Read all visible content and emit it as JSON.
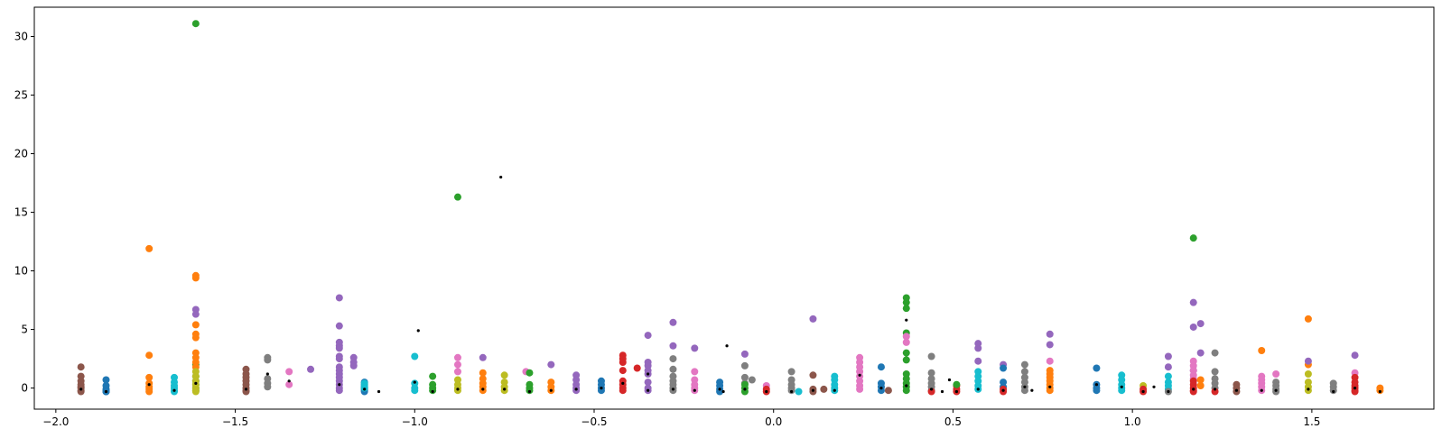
{
  "chart_data": {
    "type": "scatter",
    "title": "",
    "xlabel": "",
    "ylabel": "",
    "xlim": [
      -2.06,
      1.84
    ],
    "ylim": [
      -1.8,
      32.5
    ],
    "grid": false,
    "legend": "none",
    "x_ticks": [
      -2.0,
      -1.5,
      -1.0,
      -0.5,
      0.0,
      0.5,
      1.0,
      1.5
    ],
    "x_tick_labels": [
      "−2.0",
      "−1.5",
      "−1.0",
      "−0.5",
      "0.0",
      "0.5",
      "1.0",
      "1.5"
    ],
    "y_ticks": [
      0,
      5,
      10,
      15,
      20,
      25,
      30
    ],
    "y_tick_labels": [
      "0",
      "5",
      "10",
      "15",
      "20",
      "25",
      "30"
    ],
    "colors": [
      "#1f77b4",
      "#ff7f0e",
      "#2ca02c",
      "#d62728",
      "#9467bd",
      "#8c564b",
      "#e377c2",
      "#7f7f7f",
      "#bcbd22",
      "#17becf"
    ],
    "groups": [
      {
        "x": -1.93,
        "color": "#8c564b",
        "ys": [
          1.8,
          1.0,
          0.6,
          0.3,
          0.1,
          0.0,
          -0.2,
          -0.3
        ]
      },
      {
        "x": -1.86,
        "color": "#1f77b4",
        "ys": [
          0.7,
          0.2,
          -0.1,
          -0.2,
          -0.3,
          -0.3,
          -0.3
        ]
      },
      {
        "x": -1.74,
        "color": "#ff7f0e",
        "ys": [
          11.9,
          2.8,
          0.9,
          0.4,
          0.1,
          -0.1,
          -0.3
        ]
      },
      {
        "x": -1.67,
        "color": "#17becf",
        "ys": [
          0.9,
          0.5,
          0.2,
          0.0,
          -0.2,
          -0.3
        ]
      },
      {
        "x": -1.61,
        "color": "#2ca02c",
        "ys": [
          31.1,
          2.0,
          1.0,
          0.6,
          0.3,
          0.0,
          -0.2
        ]
      },
      {
        "x": -1.61,
        "color": "#ff7f0e",
        "ys": [
          9.6,
          9.4,
          5.4,
          4.6,
          4.3,
          3.0,
          2.6,
          2.2,
          1.8
        ]
      },
      {
        "x": -1.61,
        "color": "#9467bd",
        "ys": [
          6.7,
          6.3
        ]
      },
      {
        "x": -1.61,
        "color": "#bcbd22",
        "ys": [
          1.4,
          1.0,
          0.6,
          0.3,
          0.0,
          -0.2,
          -0.3
        ]
      },
      {
        "x": -1.47,
        "color": "#8c564b",
        "ys": [
          1.6,
          1.2,
          0.9,
          0.6,
          0.3,
          0.0,
          -0.2,
          -0.3
        ]
      },
      {
        "x": -1.41,
        "color": "#7f7f7f",
        "ys": [
          2.6,
          2.4,
          0.8,
          0.4,
          0.1
        ]
      },
      {
        "x": -1.35,
        "color": "#e377c2",
        "ys": [
          1.4,
          0.3
        ]
      },
      {
        "x": -1.29,
        "color": "#9467bd",
        "ys": [
          1.6
        ]
      },
      {
        "x": -1.21,
        "color": "#9467bd",
        "ys": [
          7.7,
          5.3,
          3.9,
          3.6,
          3.4,
          2.7,
          2.5,
          1.8,
          1.5,
          1.2,
          0.9,
          0.6,
          0.3,
          0.0,
          -0.2
        ]
      },
      {
        "x": -1.17,
        "color": "#9467bd",
        "ys": [
          2.6,
          2.2,
          1.9
        ]
      },
      {
        "x": -1.14,
        "color": "#1f77b4",
        "ys": [
          0.5,
          0.3,
          0.1,
          0.0,
          -0.1,
          -0.2,
          -0.3
        ]
      },
      {
        "x": -1.14,
        "color": "#17becf",
        "ys": [
          0.4,
          0.2,
          0.0
        ]
      },
      {
        "x": -1.0,
        "color": "#17becf",
        "ys": [
          2.7,
          0.4,
          0.0,
          -0.2
        ]
      },
      {
        "x": -0.95,
        "color": "#2ca02c",
        "ys": [
          1.0,
          0.3,
          0.0,
          -0.2
        ]
      },
      {
        "x": -0.88,
        "color": "#2ca02c",
        "ys": [
          16.3
        ]
      },
      {
        "x": -0.88,
        "color": "#e377c2",
        "ys": [
          2.6,
          2.0,
          1.4
        ]
      },
      {
        "x": -0.88,
        "color": "#bcbd22",
        "ys": [
          0.7,
          0.3,
          0.0,
          -0.2
        ]
      },
      {
        "x": -0.81,
        "color": "#9467bd",
        "ys": [
          2.6
        ]
      },
      {
        "x": -0.81,
        "color": "#ff7f0e",
        "ys": [
          1.3,
          0.8,
          0.4,
          0.1,
          -0.2
        ]
      },
      {
        "x": -0.75,
        "color": "#bcbd22",
        "ys": [
          1.1,
          0.5,
          0.1,
          -0.2
        ]
      },
      {
        "x": -0.69,
        "color": "#e377c2",
        "ys": [
          1.4
        ]
      },
      {
        "x": -0.68,
        "color": "#2ca02c",
        "ys": [
          1.3,
          0.3,
          0.0,
          -0.2
        ]
      },
      {
        "x": -0.62,
        "color": "#9467bd",
        "ys": [
          2.0
        ]
      },
      {
        "x": -0.62,
        "color": "#ff7f0e",
        "ys": [
          0.5,
          0.1,
          -0.2
        ]
      },
      {
        "x": -0.55,
        "color": "#9467bd",
        "ys": [
          1.1,
          0.7,
          0.3,
          0.0,
          -0.2
        ]
      },
      {
        "x": -0.48,
        "color": "#1f77b4",
        "ys": [
          0.6,
          0.3,
          0.0,
          -0.2
        ]
      },
      {
        "x": -0.42,
        "color": "#d62728",
        "ys": [
          2.8,
          2.5,
          2.2,
          1.5,
          0.6,
          0.3,
          0.0,
          -0.2
        ]
      },
      {
        "x": -0.38,
        "color": "#d62728",
        "ys": [
          1.7
        ]
      },
      {
        "x": -0.35,
        "color": "#9467bd",
        "ys": [
          4.5,
          2.2,
          1.9,
          1.5,
          1.2,
          0.5,
          0.0,
          -0.2
        ]
      },
      {
        "x": -0.28,
        "color": "#9467bd",
        "ys": [
          5.6,
          3.6
        ]
      },
      {
        "x": -0.28,
        "color": "#7f7f7f",
        "ys": [
          2.5,
          1.6,
          1.0,
          0.6,
          0.3,
          0.0,
          -0.2
        ]
      },
      {
        "x": -0.22,
        "color": "#9467bd",
        "ys": [
          3.4
        ]
      },
      {
        "x": -0.22,
        "color": "#e377c2",
        "ys": [
          1.4,
          0.7,
          0.3,
          0.0,
          -0.2
        ]
      },
      {
        "x": -0.15,
        "color": "#1f77b4",
        "ys": [
          0.5,
          0.2,
          -0.1,
          -0.3
        ]
      },
      {
        "x": -0.08,
        "color": "#9467bd",
        "ys": [
          2.9
        ]
      },
      {
        "x": -0.08,
        "color": "#7f7f7f",
        "ys": [
          1.9,
          0.9,
          0.4
        ]
      },
      {
        "x": -0.08,
        "color": "#2ca02c",
        "ys": [
          0.3,
          0.0,
          -0.3
        ]
      },
      {
        "x": -0.06,
        "color": "#7f7f7f",
        "ys": [
          0.7
        ]
      },
      {
        "x": -0.02,
        "color": "#e377c2",
        "ys": [
          0.2
        ]
      },
      {
        "x": -0.02,
        "color": "#d62728",
        "ys": [
          -0.1,
          -0.3
        ]
      },
      {
        "x": 0.05,
        "color": "#7f7f7f",
        "ys": [
          1.4,
          0.7,
          0.3,
          0.0,
          -0.2
        ]
      },
      {
        "x": 0.07,
        "color": "#17becf",
        "ys": [
          -0.3
        ]
      },
      {
        "x": 0.11,
        "color": "#9467bd",
        "ys": [
          5.9
        ]
      },
      {
        "x": 0.11,
        "color": "#8c564b",
        "ys": [
          1.1,
          -0.1,
          -0.3
        ]
      },
      {
        "x": 0.14,
        "color": "#8c564b",
        "ys": [
          -0.1
        ]
      },
      {
        "x": 0.17,
        "color": "#17becf",
        "ys": [
          1.0,
          0.7,
          0.3,
          0.0,
          -0.2
        ]
      },
      {
        "x": 0.24,
        "color": "#e377c2",
        "ys": [
          2.6,
          2.2,
          1.8,
          1.4,
          1.0,
          0.6,
          0.2,
          -0.1
        ]
      },
      {
        "x": 0.3,
        "color": "#1f77b4",
        "ys": [
          1.8,
          0.4,
          0.1,
          -0.2
        ]
      },
      {
        "x": 0.32,
        "color": "#8c564b",
        "ys": [
          -0.2
        ]
      },
      {
        "x": 0.37,
        "color": "#2ca02c",
        "ys": [
          7.7,
          7.3,
          6.8,
          4.7,
          3.0,
          2.4,
          1.2,
          0.8,
          0.4,
          0.1,
          -0.2
        ]
      },
      {
        "x": 0.37,
        "color": "#e377c2",
        "ys": [
          4.4,
          3.9
        ]
      },
      {
        "x": 0.44,
        "color": "#7f7f7f",
        "ys": [
          2.7,
          1.3,
          0.8,
          0.4,
          0.1,
          -0.2
        ]
      },
      {
        "x": 0.44,
        "color": "#d62728",
        "ys": [
          -0.3
        ]
      },
      {
        "x": 0.51,
        "color": "#d62728",
        "ys": [
          0.2,
          -0.1,
          -0.3
        ]
      },
      {
        "x": 0.51,
        "color": "#2ca02c",
        "ys": [
          0.3
        ]
      },
      {
        "x": 0.57,
        "color": "#9467bd",
        "ys": [
          3.8,
          3.4,
          2.3
        ]
      },
      {
        "x": 0.57,
        "color": "#17becf",
        "ys": [
          1.4,
          1.0,
          0.6,
          0.2,
          -0.1
        ]
      },
      {
        "x": 0.64,
        "color": "#9467bd",
        "ys": [
          2.0
        ]
      },
      {
        "x": 0.64,
        "color": "#1f77b4",
        "ys": [
          1.7,
          0.5,
          0.1
        ]
      },
      {
        "x": 0.64,
        "color": "#d62728",
        "ys": [
          -0.1,
          -0.3
        ]
      },
      {
        "x": 0.7,
        "color": "#7f7f7f",
        "ys": [
          2.0,
          1.4,
          0.9,
          0.5,
          0.1,
          -0.2
        ]
      },
      {
        "x": 0.77,
        "color": "#9467bd",
        "ys": [
          4.6,
          3.7
        ]
      },
      {
        "x": 0.77,
        "color": "#e377c2",
        "ys": [
          2.3
        ]
      },
      {
        "x": 0.77,
        "color": "#ff7f0e",
        "ys": [
          1.5,
          1.2,
          0.9,
          0.6,
          0.3,
          0.0,
          -0.2
        ]
      },
      {
        "x": 0.9,
        "color": "#1f77b4",
        "ys": [
          1.7,
          0.3,
          0.0,
          -0.2
        ]
      },
      {
        "x": 0.97,
        "color": "#17becf",
        "ys": [
          1.1,
          0.7,
          0.3,
          0.0,
          -0.2
        ]
      },
      {
        "x": 1.03,
        "color": "#bcbd22",
        "ys": [
          0.2
        ]
      },
      {
        "x": 1.03,
        "color": "#d62728",
        "ys": [
          -0.1,
          -0.3
        ]
      },
      {
        "x": 1.1,
        "color": "#9467bd",
        "ys": [
          2.7,
          1.8
        ]
      },
      {
        "x": 1.1,
        "color": "#17becf",
        "ys": [
          1.0,
          0.5,
          0.2,
          -0.1
        ]
      },
      {
        "x": 1.1,
        "color": "#7f7f7f",
        "ys": [
          -0.3
        ]
      },
      {
        "x": 1.17,
        "color": "#2ca02c",
        "ys": [
          12.8
        ]
      },
      {
        "x": 1.17,
        "color": "#9467bd",
        "ys": [
          7.3,
          5.2,
          1.5
        ]
      },
      {
        "x": 1.19,
        "color": "#9467bd",
        "ys": [
          5.5,
          3.0
        ]
      },
      {
        "x": 1.17,
        "color": "#e377c2",
        "ys": [
          2.3,
          1.9,
          1.5,
          1.1,
          0.8
        ]
      },
      {
        "x": 1.17,
        "color": "#d62728",
        "ys": [
          0.6,
          0.3,
          0.0,
          -0.2,
          -0.3
        ]
      },
      {
        "x": 1.19,
        "color": "#ff7f0e",
        "ys": [
          0.7,
          0.2
        ]
      },
      {
        "x": 1.23,
        "color": "#7f7f7f",
        "ys": [
          3.0,
          1.4,
          0.8,
          0.4,
          0.0
        ]
      },
      {
        "x": 1.23,
        "color": "#d62728",
        "ys": [
          -0.3
        ]
      },
      {
        "x": 1.29,
        "color": "#8c564b",
        "ys": [
          0.3,
          0.0,
          -0.3
        ]
      },
      {
        "x": 1.36,
        "color": "#ff7f0e",
        "ys": [
          3.2
        ]
      },
      {
        "x": 1.36,
        "color": "#e377c2",
        "ys": [
          1.0,
          0.7,
          0.4,
          0.1,
          -0.2
        ]
      },
      {
        "x": 1.4,
        "color": "#e377c2",
        "ys": [
          1.2
        ]
      },
      {
        "x": 1.4,
        "color": "#7f7f7f",
        "ys": [
          0.5,
          0.2,
          -0.1,
          -0.3
        ]
      },
      {
        "x": 1.49,
        "color": "#ff7f0e",
        "ys": [
          5.9,
          2.0
        ]
      },
      {
        "x": 1.49,
        "color": "#9467bd",
        "ys": [
          2.3
        ]
      },
      {
        "x": 1.49,
        "color": "#bcbd22",
        "ys": [
          1.2,
          0.5,
          0.1,
          -0.2
        ]
      },
      {
        "x": 1.56,
        "color": "#7f7f7f",
        "ys": [
          0.4,
          0.1,
          -0.2
        ]
      },
      {
        "x": 1.62,
        "color": "#9467bd",
        "ys": [
          2.8
        ]
      },
      {
        "x": 1.62,
        "color": "#e377c2",
        "ys": [
          1.3
        ]
      },
      {
        "x": 1.62,
        "color": "#d62728",
        "ys": [
          0.9,
          0.5,
          0.2,
          0.0,
          -0.2,
          -0.3
        ]
      },
      {
        "x": 1.69,
        "color": "#ff7f0e",
        "ys": [
          0.0,
          -0.2
        ]
      }
    ],
    "black_points": [
      [
        -1.93,
        -0.1
      ],
      [
        -1.86,
        -0.3
      ],
      [
        -1.74,
        0.3
      ],
      [
        -1.67,
        -0.2
      ],
      [
        -1.61,
        0.4
      ],
      [
        -1.47,
        -0.1
      ],
      [
        -1.41,
        1.2
      ],
      [
        -1.35,
        0.6
      ],
      [
        -1.21,
        0.3
      ],
      [
        -1.14,
        -0.1
      ],
      [
        -1.1,
        -0.3
      ],
      [
        -1.0,
        0.5
      ],
      [
        -0.99,
        4.9
      ],
      [
        -0.95,
        -0.3
      ],
      [
        -0.88,
        -0.1
      ],
      [
        -0.81,
        -0.1
      ],
      [
        -0.76,
        18.0
      ],
      [
        -0.75,
        -0.1
      ],
      [
        -0.68,
        -0.3
      ],
      [
        -0.62,
        -0.2
      ],
      [
        -0.55,
        -0.1
      ],
      [
        -0.48,
        0.0
      ],
      [
        -0.42,
        0.4
      ],
      [
        -0.35,
        1.2
      ],
      [
        -0.35,
        -0.2
      ],
      [
        -0.28,
        -0.1
      ],
      [
        -0.22,
        -0.2
      ],
      [
        -0.15,
        -0.1
      ],
      [
        -0.14,
        -0.3
      ],
      [
        -0.13,
        3.6
      ],
      [
        -0.08,
        -0.1
      ],
      [
        -0.02,
        -0.3
      ],
      [
        0.05,
        -0.3
      ],
      [
        0.11,
        -0.2
      ],
      [
        0.17,
        -0.2
      ],
      [
        0.24,
        1.1
      ],
      [
        0.3,
        0.0
      ],
      [
        0.37,
        5.8
      ],
      [
        0.37,
        0.2
      ],
      [
        0.44,
        -0.1
      ],
      [
        0.47,
        -0.3
      ],
      [
        0.49,
        0.7
      ],
      [
        0.51,
        -0.3
      ],
      [
        0.57,
        -0.1
      ],
      [
        0.64,
        -0.2
      ],
      [
        0.7,
        0.1
      ],
      [
        0.72,
        -0.2
      ],
      [
        0.77,
        0.1
      ],
      [
        0.9,
        0.3
      ],
      [
        0.97,
        0.1
      ],
      [
        1.03,
        -0.3
      ],
      [
        1.06,
        0.1
      ],
      [
        1.1,
        -0.3
      ],
      [
        1.17,
        -0.1
      ],
      [
        1.23,
        -0.1
      ],
      [
        1.29,
        -0.2
      ],
      [
        1.36,
        -0.2
      ],
      [
        1.4,
        -0.2
      ],
      [
        1.49,
        -0.1
      ],
      [
        1.56,
        -0.3
      ],
      [
        1.62,
        0.0
      ],
      [
        1.69,
        -0.3
      ]
    ]
  }
}
